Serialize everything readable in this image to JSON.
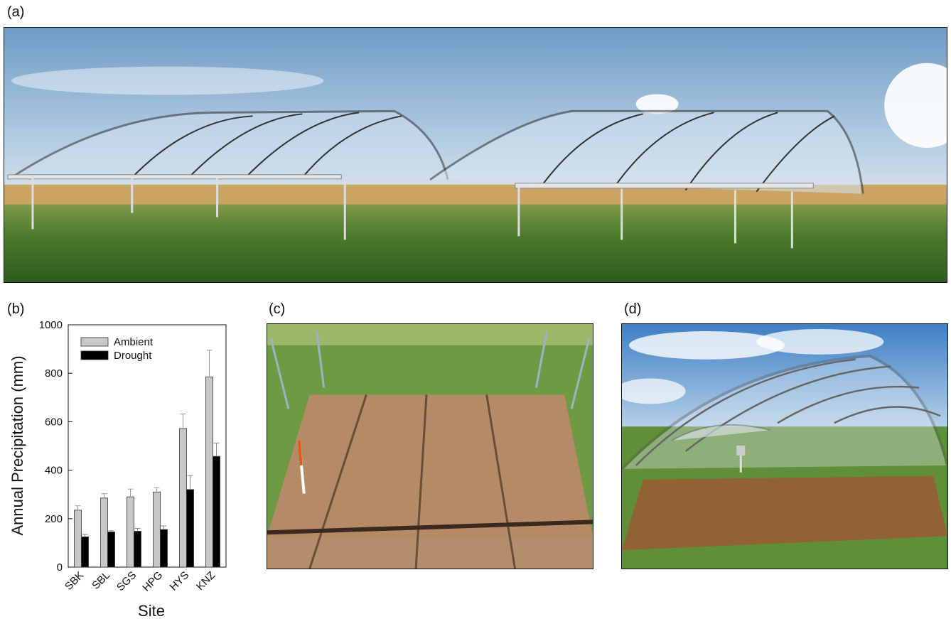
{
  "panels": {
    "a": {
      "label": "(a)"
    },
    "b": {
      "label": "(b)"
    },
    "c": {
      "label": "(c)"
    },
    "d": {
      "label": "(d)"
    }
  },
  "colors": {
    "ambient": "#c8c8c8",
    "drought": "#000000",
    "sky": "#8fb6d8",
    "grass": "#4f7a30",
    "soil": "#b58a66"
  },
  "chart_data": {
    "type": "bar",
    "xlabel": "Site",
    "ylabel": "Annual Precipitation (mm)",
    "ylim": [
      0,
      1000
    ],
    "yticks": [
      0,
      200,
      400,
      600,
      800,
      1000
    ],
    "categories": [
      "SBK",
      "SBL",
      "SGS",
      "HPG",
      "HYS",
      "KNZ"
    ],
    "series": [
      {
        "name": "Ambient",
        "values": [
          235,
          285,
          290,
          310,
          572,
          785
        ],
        "errors": [
          18,
          18,
          32,
          18,
          60,
          110
        ]
      },
      {
        "name": "Drought",
        "values": [
          125,
          145,
          148,
          155,
          320,
          457
        ],
        "errors": [
          10,
          5,
          12,
          15,
          58,
          55
        ]
      }
    ],
    "legend_position": "top-left",
    "grid": false
  }
}
